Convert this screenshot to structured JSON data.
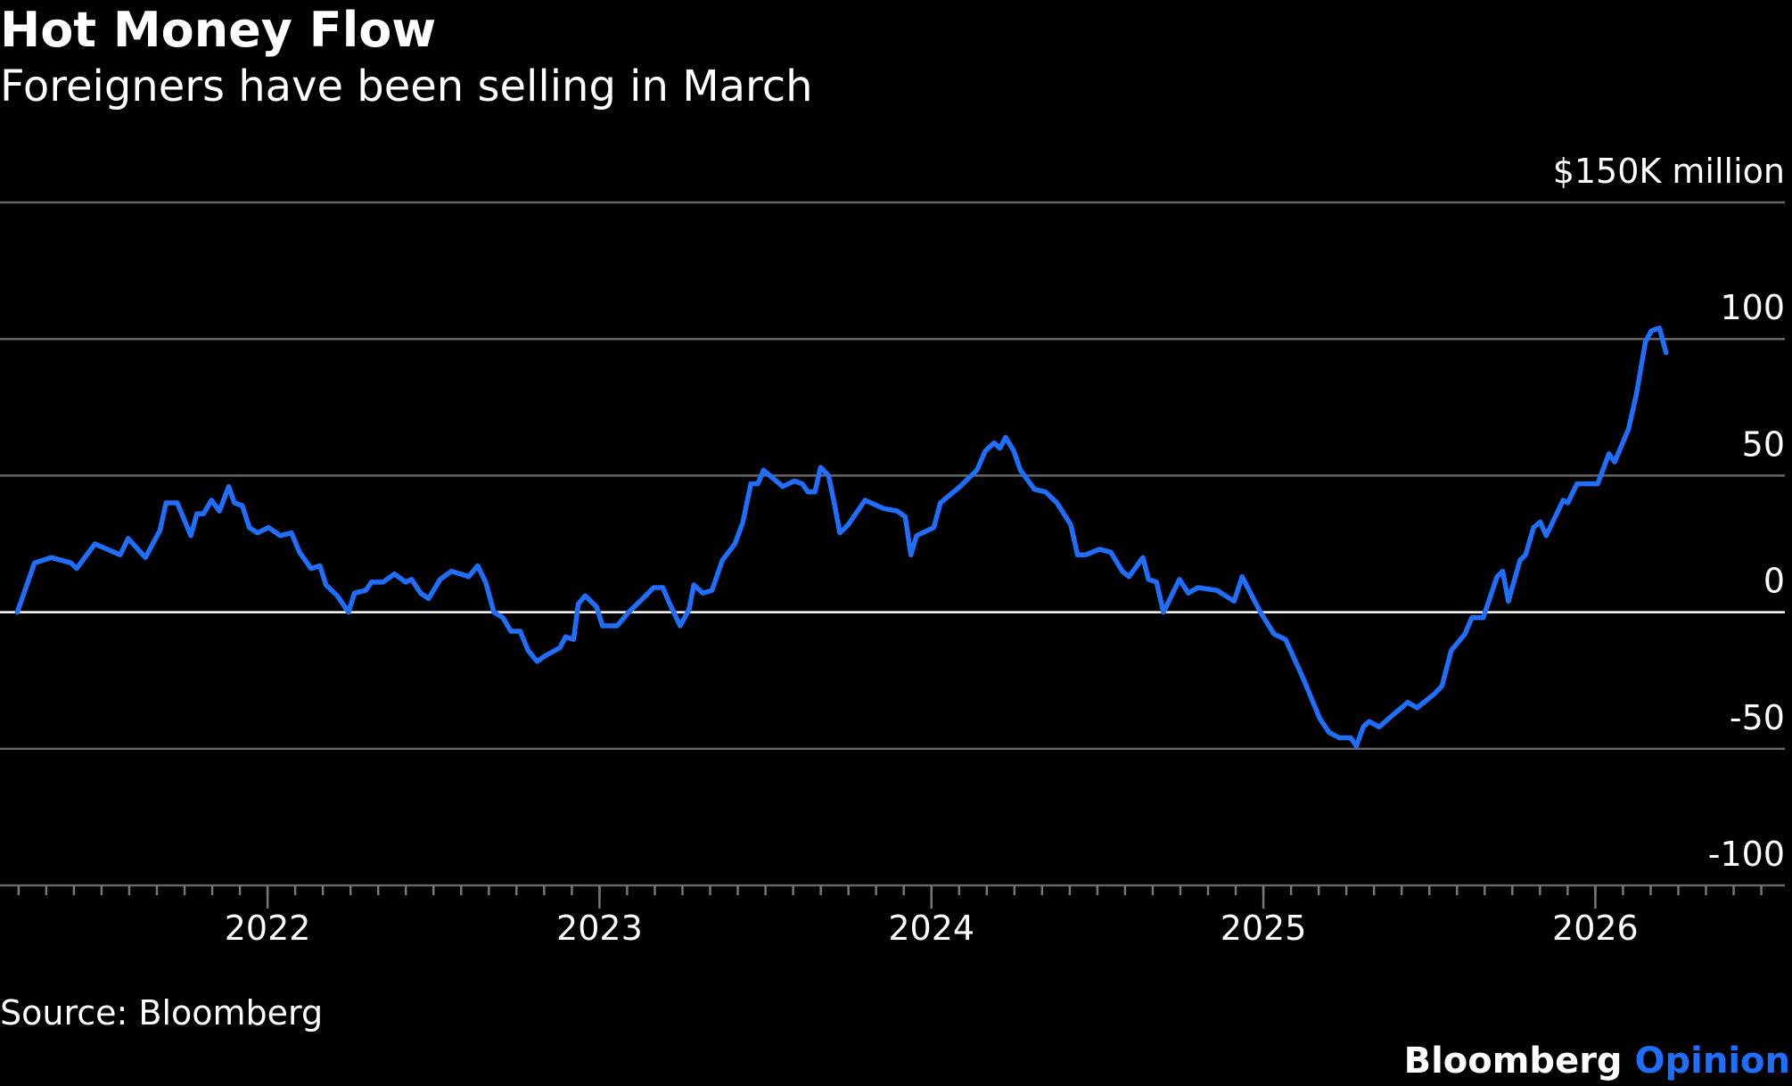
{
  "chart_data": {
    "type": "line",
    "title": "Hot Money Flow",
    "subtitle": "Foreigners have been selling in March",
    "source": "Source: Bloomberg",
    "brand": {
      "name": "Bloomberg",
      "product": "Opinion",
      "product_color": "#1f6fff"
    },
    "xlim": [
      2021.194,
      2026.571
    ],
    "xticks": [
      2022,
      2023,
      2024,
      2025,
      2026
    ],
    "ylim": [
      -100,
      150
    ],
    "yticks": [
      -100,
      -50,
      0,
      50,
      100,
      {
        "value": 150,
        "label": "$150K million"
      }
    ],
    "grid": true,
    "series": [
      {
        "color": "#1f6fff",
        "x": [
          2021.246,
          2021.298,
          2021.349,
          2021.408,
          2021.425,
          2021.48,
          2021.556,
          2021.58,
          2021.632,
          2021.676,
          2021.694,
          2021.728,
          2021.769,
          2021.787,
          2021.807,
          2021.831,
          2021.855,
          2021.883,
          2021.9,
          2021.924,
          2021.945,
          2021.969,
          2022.003,
          2022.038,
          2022.072,
          2022.096,
          2022.131,
          2022.158,
          2022.176,
          2022.21,
          2022.244,
          2022.262,
          2022.296,
          2022.313,
          2022.348,
          2022.382,
          2022.416,
          2022.434,
          2022.461,
          2022.485,
          2022.52,
          2022.554,
          2022.606,
          2022.633,
          2022.657,
          2022.682,
          2022.709,
          2022.733,
          2022.761,
          2022.785,
          2022.812,
          2022.836,
          2022.881,
          2022.898,
          2022.922,
          2022.936,
          2022.957,
          2022.991,
          2023.009,
          2023.053,
          2023.088,
          2023.139,
          2023.163,
          2023.191,
          2023.208,
          2023.243,
          2023.27,
          2023.284,
          2023.311,
          2023.339,
          2023.37,
          2023.408,
          2023.432,
          2023.456,
          2023.477,
          2023.494,
          2023.552,
          2023.587,
          2023.611,
          2023.628,
          2023.649,
          2023.666,
          2023.69,
          2023.707,
          2023.724,
          2023.749,
          2023.8,
          2023.855,
          2023.897,
          2023.921,
          2023.938,
          2023.955,
          2024.007,
          2024.027,
          2024.086,
          2024.137,
          2024.162,
          2024.189,
          2024.206,
          2024.224,
          2024.248,
          2024.268,
          2024.31,
          2024.344,
          2024.378,
          2024.42,
          2024.44,
          2024.464,
          2024.506,
          2024.54,
          2024.575,
          2024.595,
          2024.637,
          2024.654,
          2024.678,
          2024.699,
          2024.747,
          2024.774,
          2024.802,
          2024.86,
          2024.912,
          2024.936,
          2024.991,
          2025.032,
          2025.067,
          2025.119,
          2025.17,
          2025.198,
          2025.229,
          2025.263,
          2025.28,
          2025.301,
          2025.318,
          2025.349,
          2025.377,
          2025.435,
          2025.463,
          2025.514,
          2025.538,
          2025.566,
          2025.607,
          2025.628,
          2025.662,
          2025.704,
          2025.721,
          2025.738,
          2025.773,
          2025.79,
          2025.814,
          2025.834,
          2025.852,
          2025.903,
          2025.917,
          2025.945,
          2026.007,
          2026.041,
          2026.058,
          2026.1,
          2026.124,
          2026.151,
          2026.169,
          2026.193,
          2026.213
        ],
        "values": [
          0,
          18,
          20,
          18,
          16,
          25,
          21,
          27,
          20,
          30,
          40,
          40,
          28,
          36,
          36,
          41,
          37,
          46,
          40,
          39,
          31,
          29,
          31,
          28,
          29,
          22,
          16,
          17,
          10,
          6,
          0,
          7,
          8,
          11,
          11,
          14,
          11,
          12,
          7,
          5,
          12,
          15,
          13,
          17,
          11,
          0,
          -2,
          -7,
          -7,
          -14,
          -18,
          -16,
          -13,
          -9,
          -10,
          3,
          6,
          2,
          -5,
          -5,
          0,
          6,
          9,
          9,
          4,
          -5,
          1,
          10,
          7,
          8,
          19,
          25,
          33,
          47,
          47,
          52,
          46,
          48,
          47,
          44,
          44,
          53,
          50,
          40,
          29,
          32,
          41,
          38,
          37,
          35,
          21,
          28,
          31,
          40,
          46,
          52,
          59,
          62,
          60,
          64,
          59,
          52,
          45,
          44,
          40,
          32,
          21,
          21,
          23,
          22,
          15,
          13,
          20,
          12,
          11,
          0,
          12,
          7,
          9,
          8,
          4,
          13,
          0,
          -8,
          -10,
          -24,
          -39,
          -44,
          -46,
          -46,
          -49,
          -42,
          -40,
          -42,
          -39,
          -33,
          -35,
          -30,
          -27,
          -14,
          -8,
          -2,
          -2,
          13,
          15,
          4,
          19,
          21,
          31,
          33,
          28,
          41,
          40,
          47,
          47,
          58,
          55,
          67,
          80,
          99,
          103,
          104,
          95
        ]
      }
    ]
  }
}
